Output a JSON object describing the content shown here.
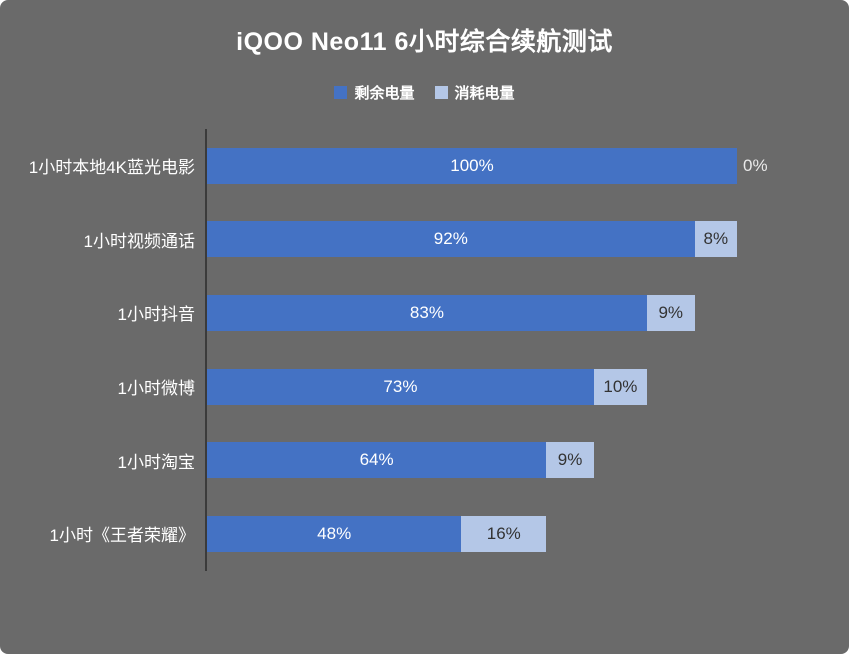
{
  "chart_data": {
    "type": "bar",
    "orientation": "horizontal",
    "stacked": true,
    "title": "iQOO Neo11 6小时综合续航测试",
    "categories": [
      "1小时本地4K蓝光电影",
      "1小时视频通话",
      "1小时抖音",
      "1小时微博",
      "1小时淘宝",
      "1小时《王者荣耀》"
    ],
    "series": [
      {
        "name": "剩余电量",
        "color": "#4472c4",
        "values": [
          100,
          92,
          83,
          73,
          64,
          48
        ]
      },
      {
        "name": "消耗电量",
        "color": "#b4c7e7",
        "values": [
          0,
          8,
          9,
          10,
          9,
          16
        ]
      }
    ],
    "xlim": [
      0,
      100
    ],
    "value_suffix": "%",
    "legend_position": "top",
    "grid": false,
    "background": "#6a6a6a",
    "axis_color": "#3b3b3b"
  }
}
